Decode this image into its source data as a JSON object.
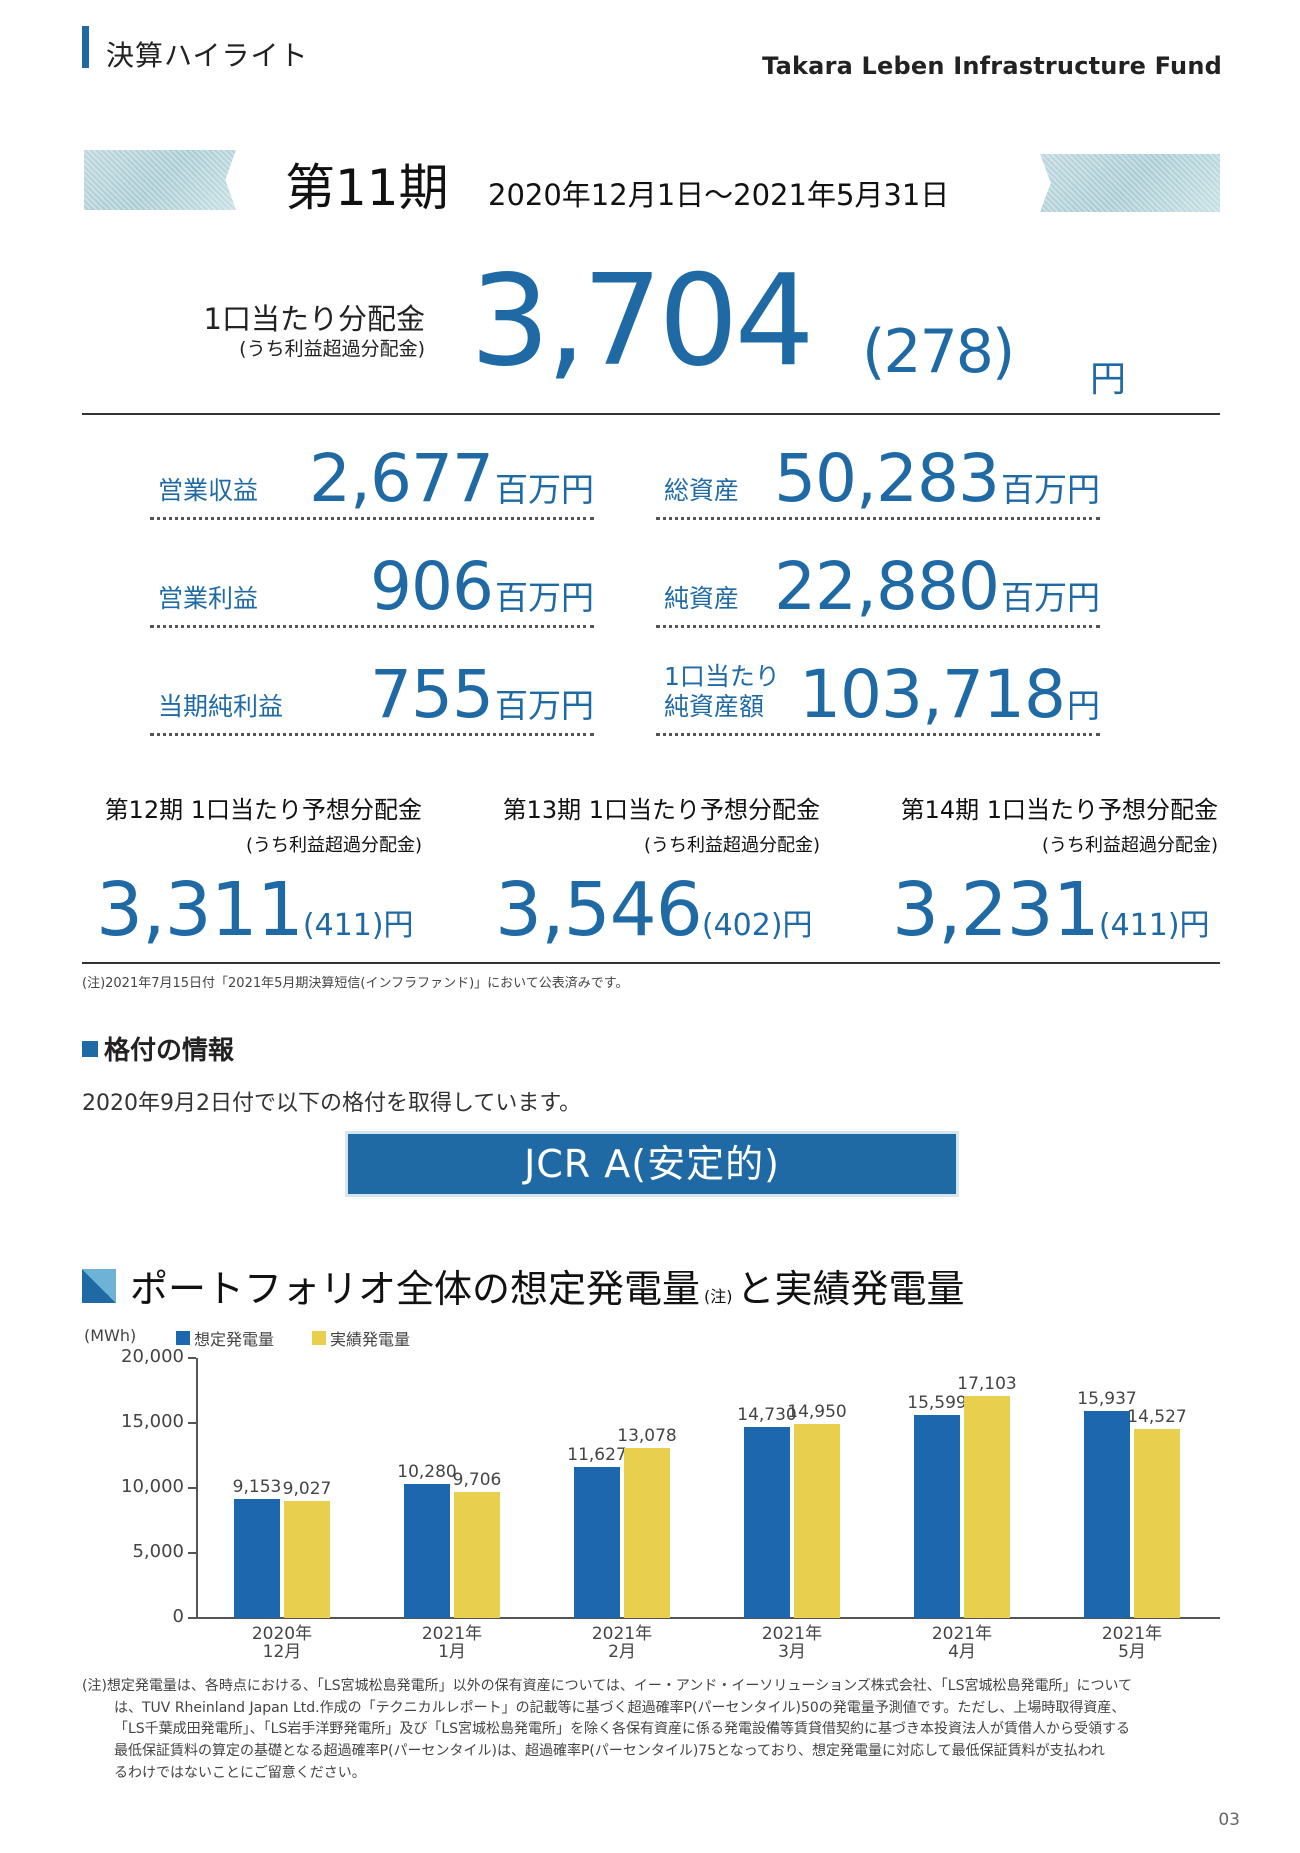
{
  "header": {
    "section_title": "決算ハイライト",
    "brand": "Takara Leben Infrastructure Fund"
  },
  "period": {
    "title": "第11期",
    "range": "2020年12月1日～2021年5月31日"
  },
  "distribution": {
    "label": "1口当たり分配金",
    "sub_label": "(うち利益超過分配金)",
    "value": "3,704",
    "excess": "(278)",
    "unit": "円"
  },
  "metrics": [
    {
      "label": "営業収益",
      "value": "2,677",
      "unit": "百万円"
    },
    {
      "label": "総資産",
      "value": "50,283",
      "unit": "百万円"
    },
    {
      "label": "営業利益",
      "value": "906",
      "unit": "百万円"
    },
    {
      "label": "純資産",
      "value": "22,880",
      "unit": "百万円"
    },
    {
      "label": "当期純利益",
      "value": "755",
      "unit": "百万円"
    },
    {
      "label": "1口当たり\n純資産額",
      "label_line1": "1口当たり",
      "label_line2": "純資産額",
      "value": "103,718",
      "unit": "円"
    }
  ],
  "forecasts": [
    {
      "title": "第12期 1口当たり予想分配金",
      "sub": "(うち利益超過分配金)",
      "value": "3,311",
      "excess": "(411)",
      "unit": "円"
    },
    {
      "title": "第13期 1口当たり予想分配金",
      "sub": "(うち利益超過分配金)",
      "value": "3,546",
      "excess": "(402)",
      "unit": "円"
    },
    {
      "title": "第14期 1口当たり予想分配金",
      "sub": "(うち利益超過分配金)",
      "value": "3,231",
      "excess": "(411)",
      "unit": "円"
    }
  ],
  "forecast_note": "(注)2021年7月15日付「2021年5月期決算短信(インフラファンド)」において公表済みです。",
  "rating": {
    "heading": "格付の情報",
    "description": "2020年9月2日付で以下の格付を取得しています。",
    "badge": "JCR A(安定的)"
  },
  "chart_section": {
    "title_part1": "ポートフォリオ全体の想定発電量",
    "title_note": "(注)",
    "title_part2": "と実績発電量",
    "colors": {
      "plan": "#1c67ad",
      "actual": "#e8cf4e"
    }
  },
  "chart_data": {
    "type": "bar",
    "title": "ポートフォリオ全体の想定発電量(注)と実績発電量",
    "ylabel": "(MWh)",
    "xlabel": "",
    "ylim": [
      0,
      20000
    ],
    "yticks": [
      "0",
      "5,000",
      "10,000",
      "15,000",
      "20,000"
    ],
    "categories": [
      "2020年 12月",
      "2021年 1月",
      "2021年 2月",
      "2021年 3月",
      "2021年 4月",
      "2021年 5月"
    ],
    "category_lines": [
      [
        "2020年",
        "12月"
      ],
      [
        "2021年",
        "1月"
      ],
      [
        "2021年",
        "2月"
      ],
      [
        "2021年",
        "3月"
      ],
      [
        "2021年",
        "4月"
      ],
      [
        "2021年",
        "5月"
      ]
    ],
    "series": [
      {
        "name": "想定発電量",
        "values": [
          9153,
          10280,
          11627,
          14730,
          15599,
          15937
        ],
        "labels": [
          "9,153",
          "10,280",
          "11,627",
          "14,730",
          "15,599",
          "15,937"
        ]
      },
      {
        "name": "実績発電量",
        "values": [
          9027,
          9706,
          13078,
          14950,
          17103,
          14527
        ],
        "labels": [
          "9,027",
          "9,706",
          "13,078",
          "14,950",
          "17,103",
          "14,527"
        ]
      }
    ],
    "legend_position": "top-left",
    "grid": false
  },
  "footnote": [
    "(注)想定発電量は、各時点における、「LS宮城松島発電所」以外の保有資産については、イー・アンド・イーソリューションズ株式会社、「LS宮城松島発電所」について",
    "は、TUV Rheinland Japan Ltd.作成の「テクニカルレポート」の記載等に基づく超過確率P(パーセンタイル)50の発電量予測値です。ただし、上場時取得資産、",
    "「LS千葉成田発電所」、「LS岩手洋野発電所」及び「LS宮城松島発電所」を除く各保有資産に係る発電設備等賃貸借契約に基づき本投資法人が賃借人から受領する",
    "最低保証賃料の算定の基礎となる超過確率P(パーセンタイル)は、超過確率P(パーセンタイル)75となっており、想定発電量に対応して最低保証賃料が支払われ",
    "るわけではないことにご留意ください。"
  ],
  "page_number": "03"
}
